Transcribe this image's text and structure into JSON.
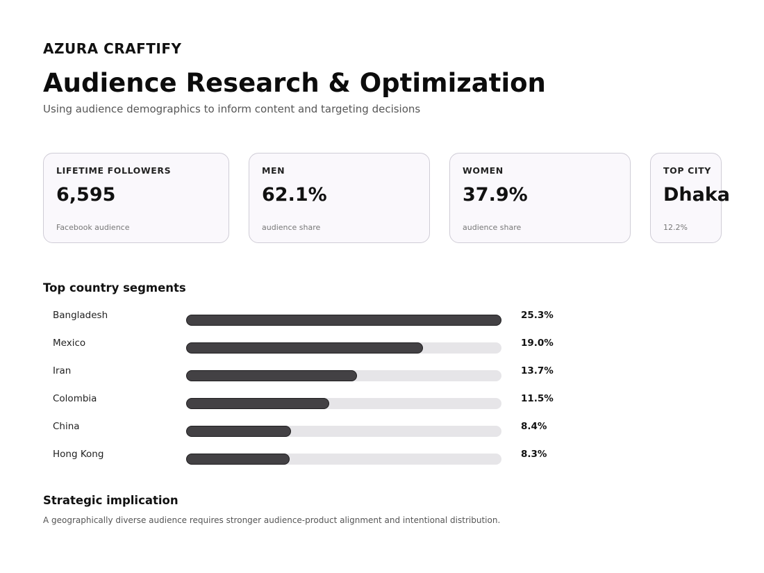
{
  "header": {
    "brand": "AZURA CRAFTIFY",
    "title": "Audience Research & Optimization",
    "subtitle": "Using audience demographics to inform content and targeting decisions"
  },
  "kpis": [
    {
      "label": "LIFETIME FOLLOWERS",
      "value": "6,595",
      "note": "Facebook audience"
    },
    {
      "label": "MEN",
      "value": "62.1%",
      "note": "audience share"
    },
    {
      "label": "WOMEN",
      "value": "37.9%",
      "note": "audience share"
    },
    {
      "label": "TOP CITY",
      "value": "Dhaka",
      "note": "12.2%"
    }
  ],
  "countries": {
    "title": "Top country segments"
  },
  "implication": {
    "title": "Strategic implication",
    "text": "A geographically diverse audience requires stronger audience-product alignment and intentional distribution."
  },
  "colors": {
    "bar_fill": "#434144",
    "bar_track": "#e6e5e8",
    "card_border": "#cfccd6",
    "card_background": "#faf8fc"
  },
  "chart_data": {
    "type": "bar",
    "orientation": "horizontal",
    "categories": [
      "Bangladesh",
      "Mexico",
      "Iran",
      "Colombia",
      "China",
      "Hong Kong"
    ],
    "values": [
      25.3,
      19.0,
      13.7,
      11.5,
      8.4,
      8.3
    ],
    "value_labels": [
      "25.3%",
      "19.0%",
      "13.7%",
      "11.5%",
      "8.4%",
      "8.3%"
    ],
    "xlim": [
      0,
      25.3
    ],
    "grid": false,
    "title": "Top country segments"
  }
}
